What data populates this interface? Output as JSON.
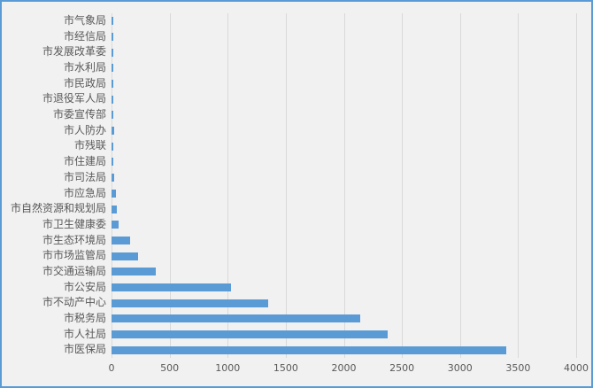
{
  "chart_data": {
    "type": "bar",
    "orientation": "horizontal",
    "title": "",
    "xlabel": "",
    "ylabel": "",
    "categories": [
      "市气象局",
      "市经信局",
      "市发展改革委",
      "市水利局",
      "市民政局",
      "市退役军人局",
      "市委宣传部",
      "市人防办",
      "市残联",
      "市住建局",
      "市司法局",
      "市应急局",
      "市自然资源和规划局",
      "市卫生健康委",
      "市生态环境局",
      "市市场监管局",
      "市交通运输局",
      "市公安局",
      "市不动产中心",
      "市税务局",
      "市人社局",
      "市医保局"
    ],
    "values": [
      15,
      14,
      14,
      15,
      18,
      14,
      14,
      21,
      15,
      15,
      23,
      36,
      44,
      59,
      158,
      225,
      378,
      1030,
      1345,
      2140,
      2380,
      3400
    ],
    "xlim": [
      0,
      4000
    ],
    "x_ticks": [
      0,
      500,
      1000,
      1500,
      2000,
      2500,
      3000,
      3500,
      4000
    ],
    "grid": true,
    "legend": false,
    "colors": {
      "bar": "#5B9BD5",
      "gridline": "#D9D9D9",
      "tick_text": "#595959",
      "background": "#F1F1F1",
      "frame_border": "#5B9BD5"
    }
  }
}
